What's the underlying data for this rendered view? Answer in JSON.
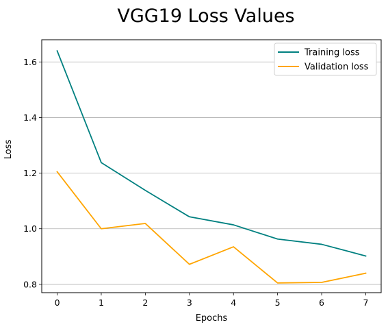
{
  "chart_data": {
    "type": "line",
    "title": "VGG19 Loss Values",
    "xlabel": "Epochs",
    "ylabel": "Loss",
    "x": [
      0,
      1,
      2,
      3,
      4,
      5,
      6,
      7
    ],
    "xlim": [
      -0.35,
      7.35
    ],
    "ylim": [
      0.77,
      1.68
    ],
    "xticks": [
      0,
      1,
      2,
      3,
      4,
      5,
      6,
      7
    ],
    "yticks": [
      0.8,
      1.0,
      1.2,
      1.4,
      1.6
    ],
    "ytick_labels": [
      "0.8",
      "1.0",
      "1.2",
      "1.4",
      "1.6"
    ],
    "grid": "horizontal",
    "legend_position": "top-right",
    "series": [
      {
        "name": "Training loss",
        "color": "#008080",
        "values": [
          1.64,
          1.238,
          1.138,
          1.043,
          1.014,
          0.963,
          0.944,
          0.902
        ]
      },
      {
        "name": "Validation loss",
        "color": "#ffa500",
        "values": [
          1.205,
          1.0,
          1.019,
          0.872,
          0.935,
          0.805,
          0.807,
          0.84
        ]
      }
    ]
  }
}
